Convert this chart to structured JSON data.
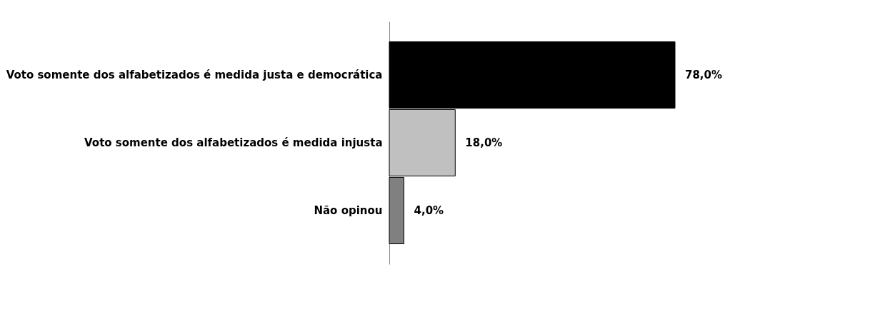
{
  "chart_data": {
    "type": "bar",
    "orientation": "horizontal",
    "categories": [
      "Voto somente dos alfabetizados é medida justa e democrática",
      "Voto somente dos alfabetizados é medida injusta",
      "Não opinou"
    ],
    "values": [
      78,
      18,
      4
    ],
    "colors": [
      "#000000",
      "#c0c0c0",
      "#808080"
    ],
    "value_labels": [
      "78,0%",
      "18,0%",
      "4,0%"
    ]
  }
}
